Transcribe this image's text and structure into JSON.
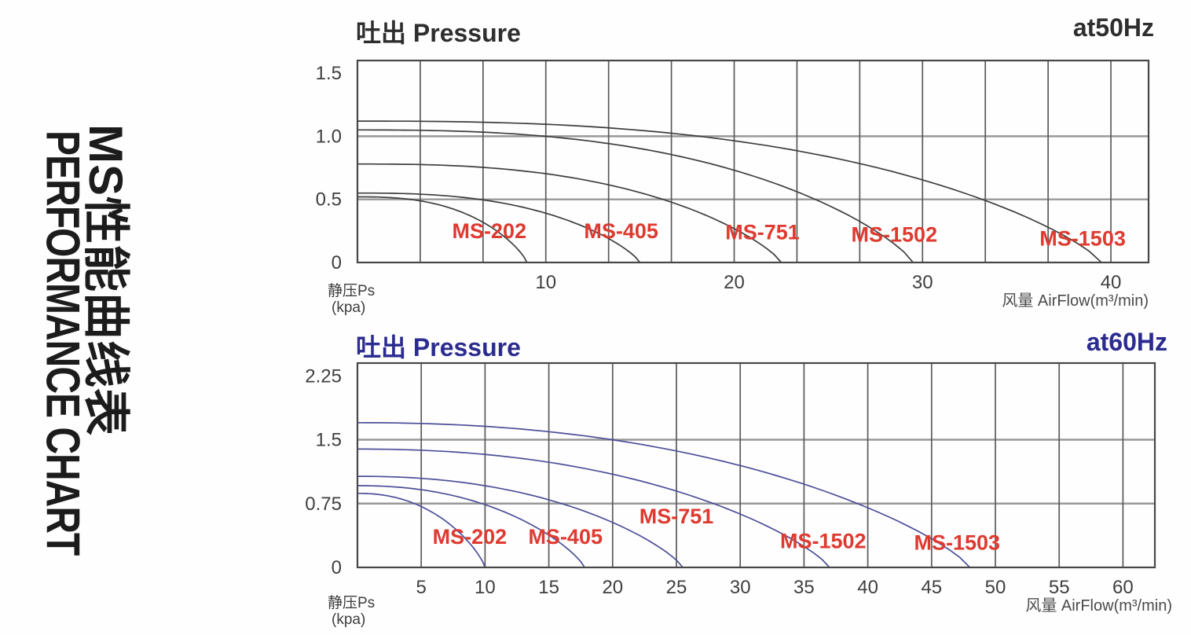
{
  "page": {
    "side_title_cn": "MS性能曲线表",
    "side_title_en": "PERFORMANCE CHART"
  },
  "chart_data": [
    {
      "type": "line",
      "title": "吐出 Pressure",
      "frequency_label": "at50Hz",
      "xlabel": "风量 AirFlow(m³/min)",
      "ylabel": "静压Ps",
      "ylabel_unit": "(kpa)",
      "xlim": [
        0,
        42
      ],
      "ylim": [
        0,
        1.6
      ],
      "x_grid_step": 3.3333,
      "x_ticks": [
        {
          "v": 10,
          "label": "10"
        },
        {
          "v": 20,
          "label": "20"
        },
        {
          "v": 30,
          "label": "30"
        },
        {
          "v": 40,
          "label": "40"
        }
      ],
      "y_ticks": [
        {
          "v": 0,
          "label": "0"
        },
        {
          "v": 0.5,
          "label": "0.5"
        },
        {
          "v": 1,
          "label": "1.0"
        },
        {
          "v": 1.5,
          "label": "1.5"
        }
      ],
      "y_grid": [
        0.5,
        1
      ],
      "grid": "on",
      "legend_position": "inline-labels",
      "title_color": "#2e2e2e",
      "curve_color": "#3e3e3e",
      "series_label_color": "#de3a30",
      "curve_model": {
        "x_exponent": 2.6,
        "y_exponent": 0.8
      },
      "series": [
        {
          "name": "MS-202",
          "points": [
            [
              0,
              0.52
            ],
            [
              4.5,
              0.45
            ],
            [
              9,
              0
            ]
          ],
          "label_pos": [
            7,
            0.25
          ]
        },
        {
          "name": "MS-405",
          "points": [
            [
              0,
              0.55
            ],
            [
              7.5,
              0.48
            ],
            [
              15,
              0
            ]
          ],
          "label_pos": [
            14,
            0.25
          ]
        },
        {
          "name": "MS-751",
          "points": [
            [
              0,
              0.78
            ],
            [
              11.3,
              0.68
            ],
            [
              22.5,
              0
            ]
          ],
          "label_pos": [
            21.5,
            0.24
          ]
        },
        {
          "name": "MS-1502",
          "points": [
            [
              0,
              1.05
            ],
            [
              14.8,
              0.91
            ],
            [
              29.5,
              0
            ]
          ],
          "label_pos": [
            28.5,
            0.22
          ]
        },
        {
          "name": "MS-1503",
          "points": [
            [
              0,
              1.12
            ],
            [
              19.8,
              0.97
            ],
            [
              39.5,
              0
            ]
          ],
          "label_pos": [
            38.5,
            0.19
          ]
        }
      ]
    },
    {
      "type": "line",
      "title": "吐出 Pressure",
      "frequency_label": "at60Hz",
      "xlabel": "风量 AirFlow(m³/min)",
      "ylabel": "静压Ps",
      "ylabel_unit": "(kpa)",
      "xlim": [
        0,
        62.5
      ],
      "ylim": [
        0,
        2.4
      ],
      "x_grid_step": 5,
      "x_ticks": [
        {
          "v": 5,
          "label": "5"
        },
        {
          "v": 10,
          "label": "10"
        },
        {
          "v": 15,
          "label": "15"
        },
        {
          "v": 20,
          "label": "20"
        },
        {
          "v": 25,
          "label": "25"
        },
        {
          "v": 30,
          "label": "30"
        },
        {
          "v": 35,
          "label": "35"
        },
        {
          "v": 40,
          "label": "40"
        },
        {
          "v": 45,
          "label": "45"
        },
        {
          "v": 50,
          "label": "50"
        },
        {
          "v": 55,
          "label": "55"
        },
        {
          "v": 60,
          "label": "60"
        }
      ],
      "y_ticks": [
        {
          "v": 0,
          "label": "0"
        },
        {
          "v": 0.75,
          "label": "0.75"
        },
        {
          "v": 1.5,
          "label": "1.5"
        },
        {
          "v": 2.25,
          "label": "2.25"
        }
      ],
      "y_grid": [
        0.75,
        1.5
      ],
      "grid": "on",
      "legend_position": "inline-labels",
      "title_color": "#2b2b90",
      "curve_color": "#4d4f99",
      "series_label_color": "#de3a30",
      "curve_model": {
        "x_exponent": 2.2,
        "y_exponent": 0.8
      },
      "series": [
        {
          "name": "MS-202",
          "points": [
            [
              0,
              0.87
            ],
            [
              5,
              0.72
            ],
            [
              10,
              0
            ]
          ],
          "label_pos": [
            8.8,
            0.36
          ]
        },
        {
          "name": "MS-405",
          "points": [
            [
              0,
              0.96
            ],
            [
              8.9,
              0.79
            ],
            [
              17.8,
              0
            ]
          ],
          "label_pos": [
            16.3,
            0.36
          ]
        },
        {
          "name": "MS-751",
          "points": [
            [
              0,
              1.07
            ],
            [
              12.8,
              0.88
            ],
            [
              25.5,
              0
            ]
          ],
          "label_pos": [
            25,
            0.6
          ]
        },
        {
          "name": "MS-1502",
          "points": [
            [
              0,
              1.39
            ],
            [
              18.5,
              1.14
            ],
            [
              37,
              0
            ]
          ],
          "label_pos": [
            36.5,
            0.31
          ]
        },
        {
          "name": "MS-1503",
          "points": [
            [
              0,
              1.7
            ],
            [
              24,
              1.4
            ],
            [
              48,
              0
            ]
          ],
          "label_pos": [
            47,
            0.29
          ]
        }
      ]
    }
  ]
}
